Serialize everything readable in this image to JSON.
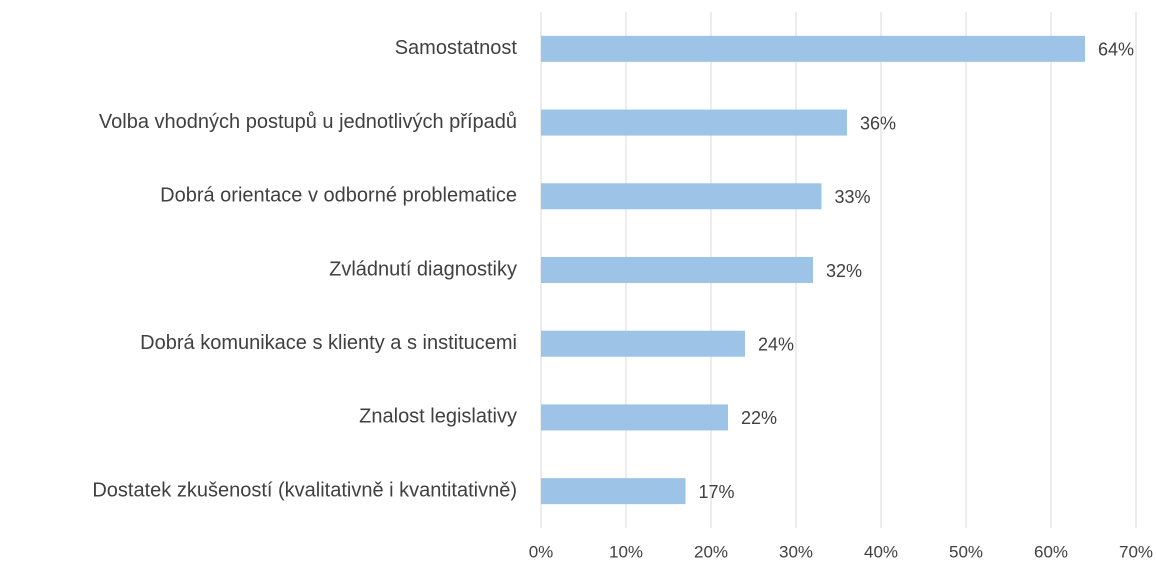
{
  "chart_data": {
    "type": "barh",
    "categories": [
      "Samostatnost",
      "Volba vhodných postupů u jednotlivých případů",
      "Dobrá orientace v odborné problematice",
      "Zvládnutí diagnostiky",
      "Dobrá komunikace s klienty a s institucemi",
      "Znalost legislativy",
      "Dostatek zkušeností (kvalitativně i kvantitativně)"
    ],
    "values": [
      64,
      36,
      33,
      32,
      24,
      22,
      17
    ],
    "value_labels": [
      "64%",
      "36%",
      "33%",
      "32%",
      "24%",
      "22%",
      "17%"
    ],
    "color": "#9dc3e6",
    "xlim": [
      0,
      70
    ],
    "xticks": [
      {
        "value": 0,
        "label": "0%"
      },
      {
        "value": 10,
        "label": "10%"
      },
      {
        "value": 20,
        "label": "20%"
      },
      {
        "value": 30,
        "label": "30%"
      },
      {
        "value": 40,
        "label": "40%"
      },
      {
        "value": 50,
        "label": "50%"
      },
      {
        "value": 60,
        "label": "60%"
      },
      {
        "value": 70,
        "label": "70%"
      }
    ],
    "grid": true
  }
}
